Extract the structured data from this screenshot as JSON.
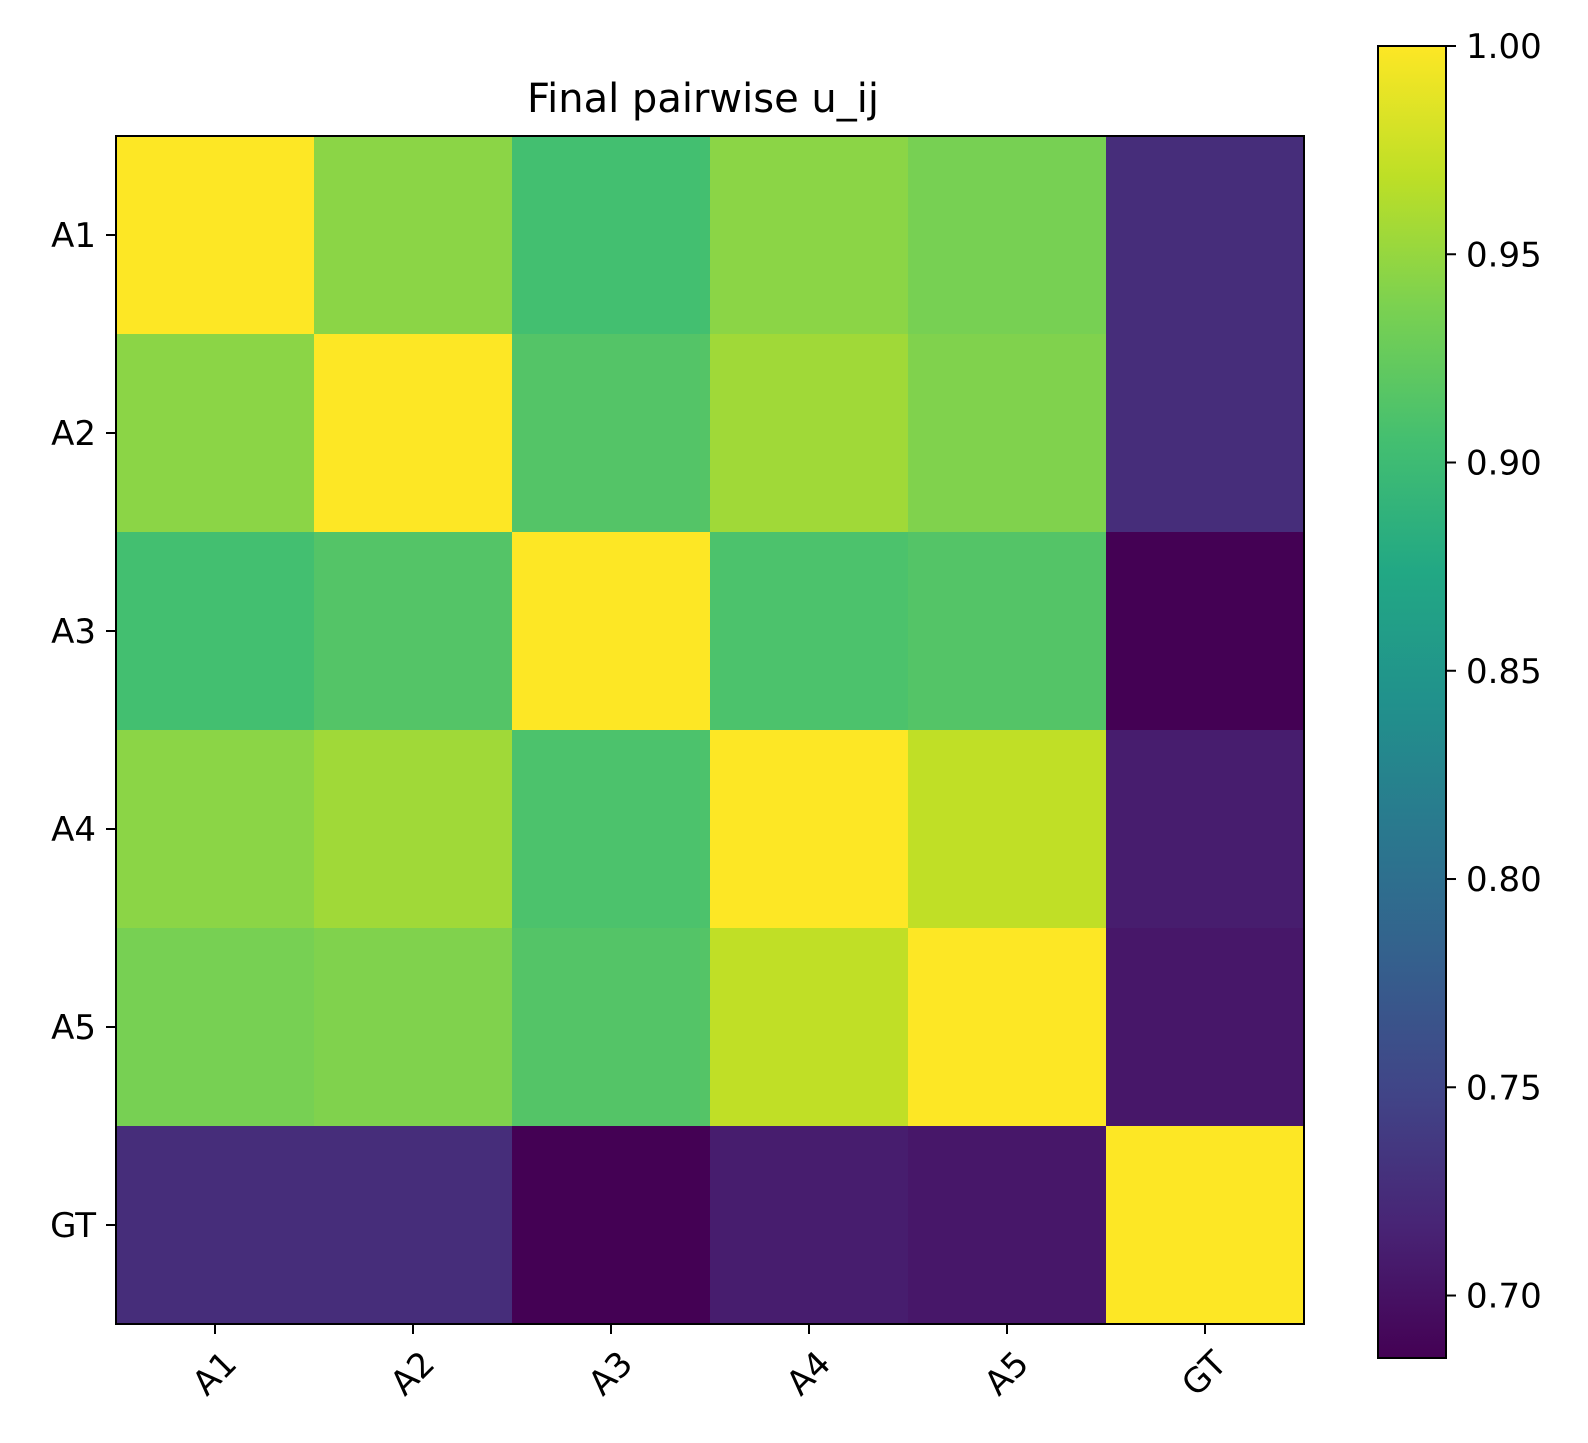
{
  "chart_data": {
    "type": "heatmap",
    "title": "Final pairwise u_ij",
    "xlabel": "",
    "ylabel": "",
    "row_labels": [
      "A1",
      "A2",
      "A3",
      "A4",
      "A5",
      "GT"
    ],
    "col_labels": [
      "A1",
      "A2",
      "A3",
      "A4",
      "A5",
      "GT"
    ],
    "values": [
      [
        1.0,
        0.945,
        0.905,
        0.945,
        0.935,
        0.725
      ],
      [
        0.945,
        1.0,
        0.915,
        0.955,
        0.94,
        0.725
      ],
      [
        0.905,
        0.915,
        1.0,
        0.91,
        0.915,
        0.685
      ],
      [
        0.945,
        0.955,
        0.91,
        1.0,
        0.97,
        0.71
      ],
      [
        0.935,
        0.94,
        0.915,
        0.97,
        1.0,
        0.705
      ],
      [
        0.725,
        0.725,
        0.685,
        0.71,
        0.705,
        1.0
      ]
    ],
    "colormap": "viridis",
    "colorbar": {
      "min": 0.685,
      "max": 1.0,
      "ticks": [
        0.7,
        0.75,
        0.8,
        0.85,
        0.9,
        0.95,
        1.0
      ],
      "tick_labels": [
        "0.70",
        "0.75",
        "0.80",
        "0.85",
        "0.90",
        "0.95",
        "1.00"
      ]
    },
    "grid": false,
    "x_tick_rotation": 45
  }
}
